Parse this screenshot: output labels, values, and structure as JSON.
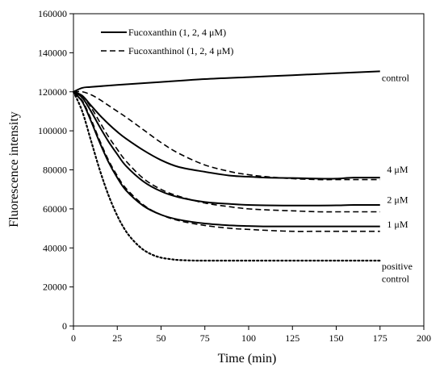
{
  "chart_data": {
    "type": "line",
    "title": "",
    "xlabel": "Time (min)",
    "ylabel": "Fluorescence intensity",
    "xlim": [
      0,
      200
    ],
    "ylim": [
      0,
      160000
    ],
    "xticks": [
      "0",
      "25",
      "50",
      "75",
      "100",
      "125",
      "150",
      "175",
      "200"
    ],
    "yticks": [
      "0",
      "20000",
      "40000",
      "60000",
      "80000",
      "100000",
      "120000",
      "140000",
      "160000"
    ],
    "grid": false,
    "legend_position": "top-left",
    "legend": [
      {
        "label": "Fucoxanthin (1, 2, 4 μM)",
        "style": "solid"
      },
      {
        "label": "Fucoxanthinol (1, 2, 4 μM)",
        "style": "dashed"
      }
    ],
    "series": [
      {
        "group": "control",
        "style": "solid",
        "color": "#000000",
        "x": [
          0,
          5,
          10,
          25,
          50,
          75,
          100,
          125,
          150,
          175
        ],
        "y": [
          120000,
          122000,
          122500,
          123500,
          125000,
          126500,
          127500,
          128500,
          129500,
          130500
        ]
      },
      {
        "group": "Fucoxanthin 4 μM",
        "style": "solid",
        "color": "#000000",
        "x": [
          0,
          5,
          10,
          15,
          20,
          25,
          30,
          40,
          50,
          60,
          75,
          90,
          100,
          110,
          125,
          140,
          150,
          160,
          175
        ],
        "y": [
          120000,
          118000,
          113000,
          108000,
          103500,
          99500,
          96000,
          90000,
          85000,
          81500,
          79000,
          77000,
          76500,
          76000,
          75800,
          75500,
          75500,
          76000,
          76000
        ]
      },
      {
        "group": "Fucoxanthin 2 μM",
        "style": "solid",
        "color": "#000000",
        "x": [
          0,
          5,
          10,
          15,
          20,
          25,
          30,
          40,
          50,
          60,
          75,
          90,
          100,
          110,
          125,
          140,
          150,
          160,
          175
        ],
        "y": [
          120000,
          117000,
          110000,
          102000,
          94500,
          88000,
          82000,
          74000,
          69000,
          66000,
          63500,
          62500,
          62000,
          61800,
          61700,
          61700,
          61800,
          62000,
          62000
        ]
      },
      {
        "group": "Fucoxanthin 1 μM",
        "style": "solid",
        "color": "#000000",
        "x": [
          0,
          5,
          10,
          15,
          20,
          25,
          30,
          40,
          50,
          60,
          75,
          90,
          100,
          110,
          125,
          140,
          150,
          160,
          175
        ],
        "y": [
          119500,
          115000,
          105000,
          94000,
          84000,
          76000,
          69500,
          61500,
          57000,
          54500,
          52500,
          51500,
          51200,
          51000,
          51000,
          51000,
          51000,
          51000,
          51000
        ]
      },
      {
        "group": "Fucoxanthinol 4 μM",
        "style": "dashed",
        "color": "#000000",
        "x": [
          0,
          5,
          10,
          15,
          20,
          25,
          30,
          40,
          50,
          60,
          75,
          90,
          100,
          110,
          125,
          140,
          150,
          160,
          175
        ],
        "y": [
          120000,
          120000,
          118500,
          116000,
          113000,
          110000,
          107000,
          100500,
          94000,
          88500,
          82500,
          79000,
          77500,
          76500,
          75500,
          75000,
          75000,
          75000,
          75000
        ]
      },
      {
        "group": "Fucoxanthinol 2 μM",
        "style": "dashed",
        "color": "#000000",
        "x": [
          0,
          5,
          10,
          15,
          20,
          25,
          30,
          40,
          50,
          60,
          75,
          90,
          100,
          110,
          125,
          140,
          150,
          160,
          175
        ],
        "y": [
          120000,
          118000,
          112000,
          104500,
          97000,
          90500,
          84500,
          75500,
          70000,
          66500,
          63000,
          61000,
          60000,
          59500,
          59000,
          58500,
          58500,
          58500,
          58500
        ]
      },
      {
        "group": "Fucoxanthinol 1 μM",
        "style": "dashed",
        "color": "#000000",
        "x": [
          0,
          5,
          10,
          15,
          20,
          25,
          30,
          40,
          50,
          60,
          75,
          90,
          100,
          110,
          125,
          140,
          150,
          160,
          175
        ],
        "y": [
          119500,
          115500,
          106000,
          95000,
          85000,
          77000,
          70500,
          62000,
          57000,
          54000,
          51500,
          50000,
          49500,
          49000,
          48500,
          48500,
          48500,
          48500,
          48500
        ]
      },
      {
        "group": "positive control",
        "style": "dotted",
        "color": "#000000",
        "x": [
          0,
          5,
          10,
          15,
          20,
          25,
          30,
          35,
          40,
          45,
          50,
          55,
          60,
          70,
          80,
          100,
          125,
          150,
          175
        ],
        "y": [
          120000,
          110000,
          95000,
          80000,
          67000,
          56500,
          48500,
          43000,
          39000,
          36500,
          35000,
          34300,
          33800,
          33500,
          33500,
          33500,
          33500,
          33500,
          33500
        ]
      }
    ],
    "annotations": [
      {
        "text": "control",
        "x": 176,
        "y": 125500
      },
      {
        "text": "4 μM",
        "x": 179,
        "y": 78500
      },
      {
        "text": "2 μM",
        "x": 179,
        "y": 63000
      },
      {
        "text": "1 μM",
        "x": 179,
        "y": 50500
      },
      {
        "text": "positive",
        "x": 176,
        "y": 29000
      },
      {
        "text": "control",
        "x": 176,
        "y": 22500
      }
    ]
  }
}
